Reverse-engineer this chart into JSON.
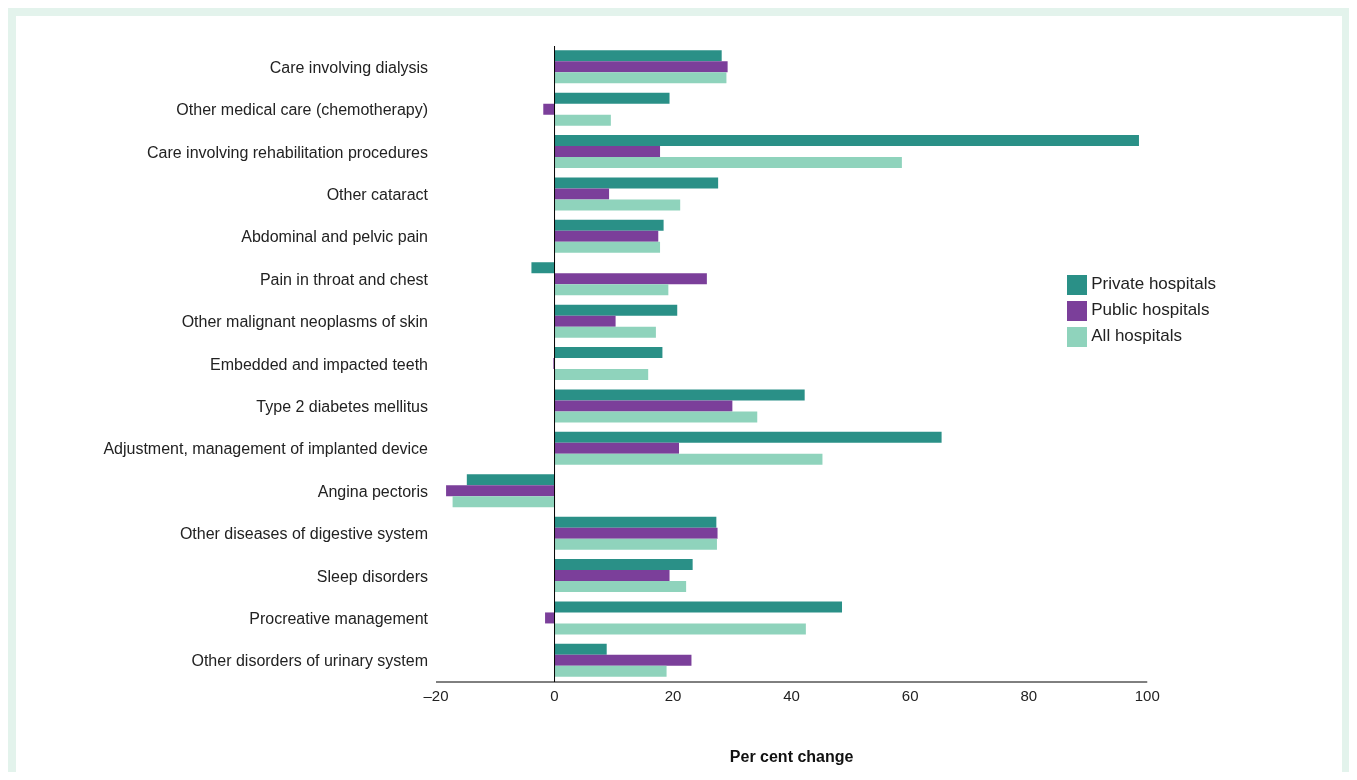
{
  "chart_data": {
    "type": "bar",
    "orientation": "horizontal",
    "xlabel": "Per cent change",
    "categories": [
      "Care involving dialysis",
      "Other medical care (chemotherapy)",
      "Care involving rehabilitation procedures",
      "Other cataract",
      "Abdominal and pelvic pain",
      "Pain in throat and chest",
      "Other malignant neoplasms of skin",
      "Embedded and impacted teeth",
      "Type 2 diabetes mellitus",
      "Adjustment, management of implanted device",
      "Angina pectoris",
      "Other diseases of digestive system",
      "Sleep disorders",
      "Procreative management",
      "Other disorders of urinary system"
    ],
    "series": [
      {
        "name": "Private hospitals",
        "color": "#2a9087",
        "values": [
          28.2,
          19.4,
          98.6,
          27.6,
          18.4,
          -3.9,
          20.7,
          18.2,
          42.2,
          65.3,
          -14.8,
          27.3,
          23.3,
          48.5,
          8.8
        ]
      },
      {
        "name": "Public hospitals",
        "color": "#7b3f9a",
        "values": [
          29.2,
          -1.9,
          17.8,
          9.2,
          17.5,
          25.7,
          10.3,
          -0.2,
          30.0,
          21.0,
          -18.3,
          27.5,
          19.4,
          -1.6,
          23.1
        ]
      },
      {
        "name": "All hospitals",
        "color": "#8fd3bc",
        "values": [
          29.0,
          9.5,
          58.6,
          21.2,
          17.8,
          19.2,
          17.1,
          15.8,
          34.2,
          45.2,
          -17.2,
          27.4,
          22.2,
          42.4,
          18.9
        ]
      }
    ],
    "xlim": [
      -20,
      100
    ],
    "xticks": [
      {
        "value": -20,
        "label": "–20"
      },
      0,
      20,
      40,
      60,
      80,
      100
    ],
    "legend": "right"
  }
}
